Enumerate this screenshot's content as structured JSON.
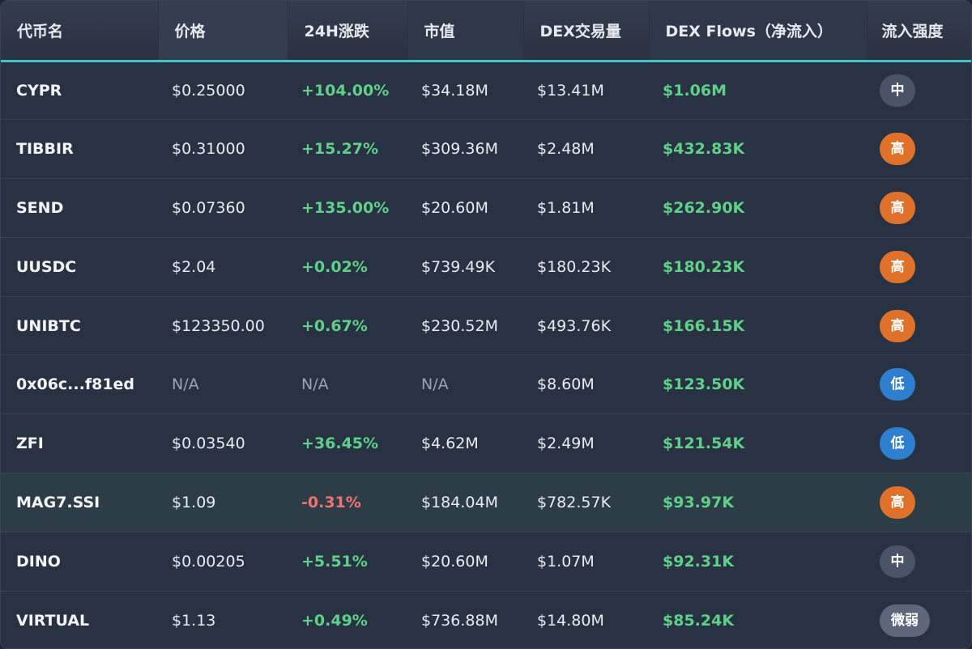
{
  "header": {
    "symbol": "代币名",
    "price": "价格",
    "change24h": "24H涨跌",
    "market_cap": "市值",
    "dex_volume": "DEX交易量",
    "dex_flows": "DEX Flows（净流入）",
    "inflow_strength": "流入强度"
  },
  "colors": {
    "accent": "#3fc6c5",
    "positive": "#5fd08a",
    "negative": "#f27272",
    "badge_high": "#e0712b",
    "badge_mid": "#4a5468",
    "badge_low": "#2f7fd0",
    "badge_weak": "#5d6779"
  },
  "rows": [
    {
      "symbol": "CYPR",
      "price": "$0.25000",
      "change": "+104.00%",
      "market_cap": "$34.18M",
      "dex_volume": "$13.41M",
      "dex_flows": "$1.06M",
      "strength": "中"
    },
    {
      "symbol": "TIBBIR",
      "price": "$0.31000",
      "change": "+15.27%",
      "market_cap": "$309.36M",
      "dex_volume": "$2.48M",
      "dex_flows": "$432.83K",
      "strength": "高"
    },
    {
      "symbol": "SEND",
      "price": "$0.07360",
      "change": "+135.00%",
      "market_cap": "$20.60M",
      "dex_volume": "$1.81M",
      "dex_flows": "$262.90K",
      "strength": "高"
    },
    {
      "symbol": "UUSDC",
      "price": "$2.04",
      "change": "+0.02%",
      "market_cap": "$739.49K",
      "dex_volume": "$180.23K",
      "dex_flows": "$180.23K",
      "strength": "高"
    },
    {
      "symbol": "UNIBTC",
      "price": "$123350.00",
      "change": "+0.67%",
      "market_cap": "$230.52M",
      "dex_volume": "$493.76K",
      "dex_flows": "$166.15K",
      "strength": "高"
    },
    {
      "symbol": "0x06c...f81ed",
      "price": "N/A",
      "change": "N/A",
      "market_cap": "N/A",
      "dex_volume": "$8.60M",
      "dex_flows": "$123.50K",
      "strength": "低"
    },
    {
      "symbol": "ZFI",
      "price": "$0.03540",
      "change": "+36.45%",
      "market_cap": "$4.62M",
      "dex_volume": "$2.49M",
      "dex_flows": "$121.54K",
      "strength": "低"
    },
    {
      "symbol": "MAG7.SSI",
      "price": "$1.09",
      "change": "-0.31%",
      "market_cap": "$184.04M",
      "dex_volume": "$782.57K",
      "dex_flows": "$93.97K",
      "strength": "高"
    },
    {
      "symbol": "DINO",
      "price": "$0.00205",
      "change": "+5.51%",
      "market_cap": "$20.60M",
      "dex_volume": "$1.07M",
      "dex_flows": "$92.31K",
      "strength": "中"
    },
    {
      "symbol": "VIRTUAL",
      "price": "$1.13",
      "change": "+0.49%",
      "market_cap": "$736.88M",
      "dex_volume": "$14.80M",
      "dex_flows": "$85.24K",
      "strength": "微弱"
    }
  ]
}
